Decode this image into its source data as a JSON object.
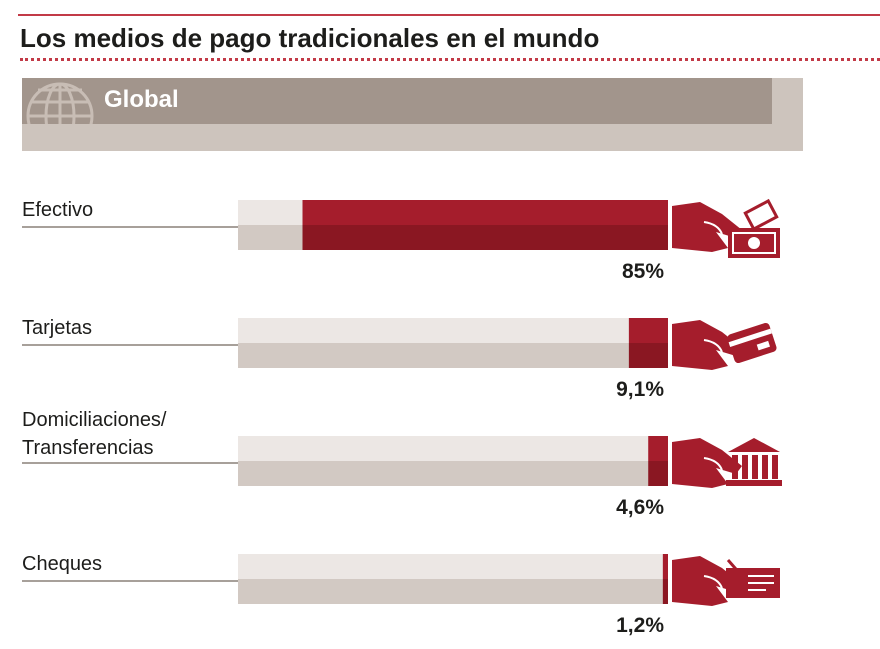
{
  "title": "Los medios de pago tradicionales en el mundo",
  "region": "Global",
  "colors": {
    "accent": "#a51d2c",
    "accent_dark": "#8a1722",
    "track_light": "#ece7e4",
    "track_dark": "#d2c9c3",
    "banner_light": "#cdc4bd",
    "banner_dark": "#a2958c",
    "rule": "#c23a47"
  },
  "chart_data": {
    "type": "bar",
    "orientation": "horizontal",
    "title": "Los medios de pago tradicionales en el mundo",
    "subtitle": "Global",
    "xlabel": "",
    "ylabel": "",
    "xlim": [
      0,
      100
    ],
    "grid": false,
    "bar_direction": "right-to-left",
    "categories": [
      [
        "Efectivo"
      ],
      [
        "Tarjetas"
      ],
      [
        "Domiciliaciones/",
        "Transferencias"
      ],
      [
        "Cheques"
      ]
    ],
    "values": [
      85,
      9.1,
      4.6,
      1.2
    ],
    "value_labels": [
      "85%",
      "9,1%",
      "4,6%",
      "1,2%"
    ],
    "icons": [
      "hand-cash-icon",
      "hand-card-icon",
      "hand-bank-icon",
      "hand-cheque-icon"
    ]
  }
}
